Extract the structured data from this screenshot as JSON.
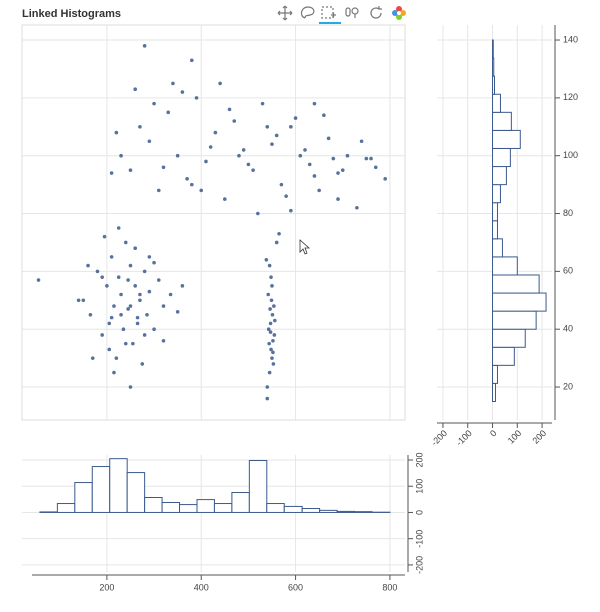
{
  "chart_data": [
    {
      "type": "scatter",
      "title": "Linked Histograms",
      "x": [
        150,
        165,
        180,
        190,
        200,
        205,
        210,
        215,
        220,
        225,
        230,
        235,
        240,
        245,
        250,
        255,
        260,
        265,
        270,
        275,
        280,
        285,
        290,
        300,
        310,
        320,
        335,
        350,
        170,
        195,
        215,
        240,
        260,
        280,
        300,
        230,
        250,
        270,
        210,
        190,
        140,
        160,
        320,
        360,
        250,
        265,
        225,
        205,
        245,
        290,
        55,
        540,
        545,
        550,
        548,
        552,
        555,
        543,
        547,
        551,
        546,
        549,
        553,
        544,
        556,
        542,
        550,
        548,
        545,
        552,
        547,
        540,
        560,
        565,
        538,
        554,
        230,
        250,
        270,
        290,
        310,
        330,
        350,
        370,
        390,
        410,
        430,
        450,
        470,
        490,
        510,
        530,
        550,
        570,
        590,
        610,
        630,
        650,
        670,
        690,
        710,
        730,
        750,
        770,
        790,
        260,
        300,
        340,
        380,
        420,
        460,
        500,
        540,
        580,
        620,
        660,
        700,
        740,
        280,
        360,
        440,
        520,
        600,
        680,
        320,
        400,
        480,
        560,
        640,
        220,
        380,
        590,
        640,
        690,
        760,
        210
      ],
      "y": [
        50,
        45,
        60,
        38,
        55,
        42,
        65,
        48,
        30,
        58,
        52,
        40,
        70,
        47,
        62,
        35,
        55,
        44,
        50,
        28,
        60,
        45,
        53,
        40,
        57,
        48,
        52,
        46,
        30,
        72,
        25,
        35,
        68,
        38,
        63,
        45,
        20,
        52,
        44,
        58,
        50,
        62,
        36,
        55,
        48,
        42,
        75,
        33,
        57,
        65,
        57,
        20,
        25,
        30,
        33,
        36,
        38,
        40,
        42,
        45,
        47,
        50,
        28,
        35,
        43,
        52,
        55,
        58,
        62,
        32,
        39,
        16,
        70,
        73,
        64,
        48,
        100,
        95,
        110,
        105,
        88,
        115,
        100,
        92,
        120,
        98,
        108,
        85,
        112,
        102,
        95,
        118,
        104,
        90,
        110,
        100,
        97,
        88,
        106,
        94,
        100,
        82,
        99,
        96,
        92,
        123,
        118,
        125,
        90,
        103,
        116,
        97,
        110,
        86,
        102,
        114,
        95,
        105,
        138,
        122,
        125,
        80,
        113,
        99,
        96,
        88,
        100,
        107,
        93,
        108,
        133,
        81,
        118,
        85,
        99,
        94
      ],
      "color": "#3a5a8c",
      "xlim": [
        20,
        832
      ],
      "ylim": [
        8.6,
        145.2
      ],
      "xticks": [
        200,
        400,
        600,
        800
      ],
      "yticks": [
        20,
        40,
        60,
        80,
        100,
        120,
        140
      ],
      "grid": true
    },
    {
      "type": "histogram",
      "orientation": "horizontal",
      "bins": [
        15,
        21.25,
        27.5,
        33.75,
        40,
        46.25,
        52.5,
        58.75,
        65,
        71.25,
        77.5,
        83.75,
        90,
        96.25,
        102.5,
        108.75,
        115,
        121.25,
        127.5,
        133.75,
        140
      ],
      "counts": [
        12,
        20,
        88,
        132,
        176,
        216,
        188,
        100,
        40,
        20,
        20,
        32,
        56,
        72,
        112,
        76,
        32,
        8,
        5,
        3
      ],
      "color": "#ffffff",
      "edge_color": "#3a5a8c",
      "xlim": [
        -224,
        240
      ],
      "xticks": [
        -200,
        -100,
        0,
        100,
        200
      ],
      "ylim": [
        8.6,
        145.2
      ],
      "yticks": [
        20,
        40,
        60,
        80,
        100,
        120,
        140
      ],
      "grid": true
    },
    {
      "type": "histogram",
      "orientation": "vertical",
      "bins": [
        58,
        95,
        132,
        169,
        206,
        243,
        280,
        317,
        354,
        391,
        428,
        465,
        502,
        539,
        576,
        614,
        651,
        688,
        725,
        762,
        800
      ],
      "counts": [
        2,
        34,
        114,
        175,
        205,
        152,
        57,
        38,
        30,
        49,
        34,
        76,
        198,
        34,
        23,
        15,
        8,
        4,
        3,
        1
      ],
      "color": "#ffffff",
      "edge_color": "#3a5a8c",
      "xlim": [
        20,
        832
      ],
      "xticks": [
        200,
        400,
        600,
        800
      ],
      "ylim": [
        -227,
        219
      ],
      "yticks": [
        200,
        100,
        0,
        -100,
        -200
      ],
      "grid": true
    }
  ]
}
